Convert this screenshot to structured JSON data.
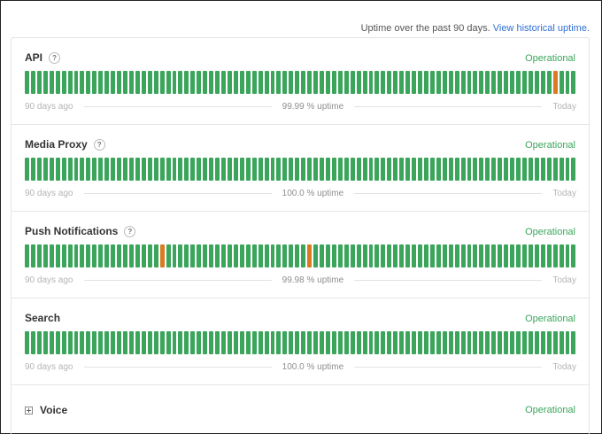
{
  "header": {
    "uptime_text": "Uptime over the past 90 days.",
    "history_link": "View historical uptime."
  },
  "colors": {
    "operational": "#3ba55c",
    "degraded": "#d97b22",
    "link": "#2f6fd6"
  },
  "components": [
    {
      "name": "API",
      "help_icon": "question-icon",
      "status": "Operational",
      "uptime": "99.99 % uptime",
      "start_label": "90 days ago",
      "end_label": "Today",
      "degraded_days": [
        86
      ]
    },
    {
      "name": "Media Proxy",
      "help_icon": "question-icon",
      "status": "Operational",
      "uptime": "100.0 % uptime",
      "start_label": "90 days ago",
      "end_label": "Today",
      "degraded_days": []
    },
    {
      "name": "Push Notifications",
      "help_icon": "question-icon",
      "status": "Operational",
      "uptime": "99.98 % uptime",
      "start_label": "90 days ago",
      "end_label": "Today",
      "degraded_days": [
        22,
        46
      ]
    },
    {
      "name": "Search",
      "help_icon": "",
      "status": "Operational",
      "uptime": "100.0 % uptime",
      "start_label": "90 days ago",
      "end_label": "Today",
      "degraded_days": []
    }
  ],
  "voice": {
    "name": "Voice",
    "expand_icon": "plus-square-icon",
    "status": "Operational"
  }
}
